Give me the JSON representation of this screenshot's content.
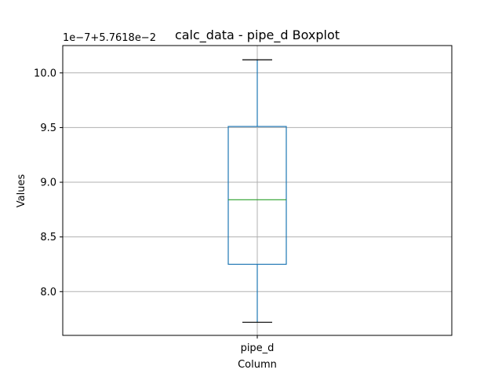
{
  "chart_data": {
    "type": "box",
    "title": "calc_data - pipe_d Boxplot",
    "xlabel": "Column",
    "ylabel": "Values",
    "offset_text": "1e−7+5.7618e−2",
    "categories": [
      "pipe_d"
    ],
    "yticks": [
      8.0,
      8.5,
      9.0,
      9.5,
      10.0
    ],
    "ytick_labels": [
      "8.0",
      "8.5",
      "9.0",
      "9.5",
      "10.0"
    ],
    "ylim": [
      7.6,
      10.25
    ],
    "grid": true,
    "series": [
      {
        "whisker_low": 7.72,
        "q1": 8.25,
        "median": 8.84,
        "q3": 9.51,
        "whisker_high": 10.12
      }
    ],
    "colors": {
      "box": "#1f77b4",
      "median": "#2ca02c",
      "cap": "#000000",
      "grid": "#b0b0b0",
      "axes": "#000000"
    }
  }
}
